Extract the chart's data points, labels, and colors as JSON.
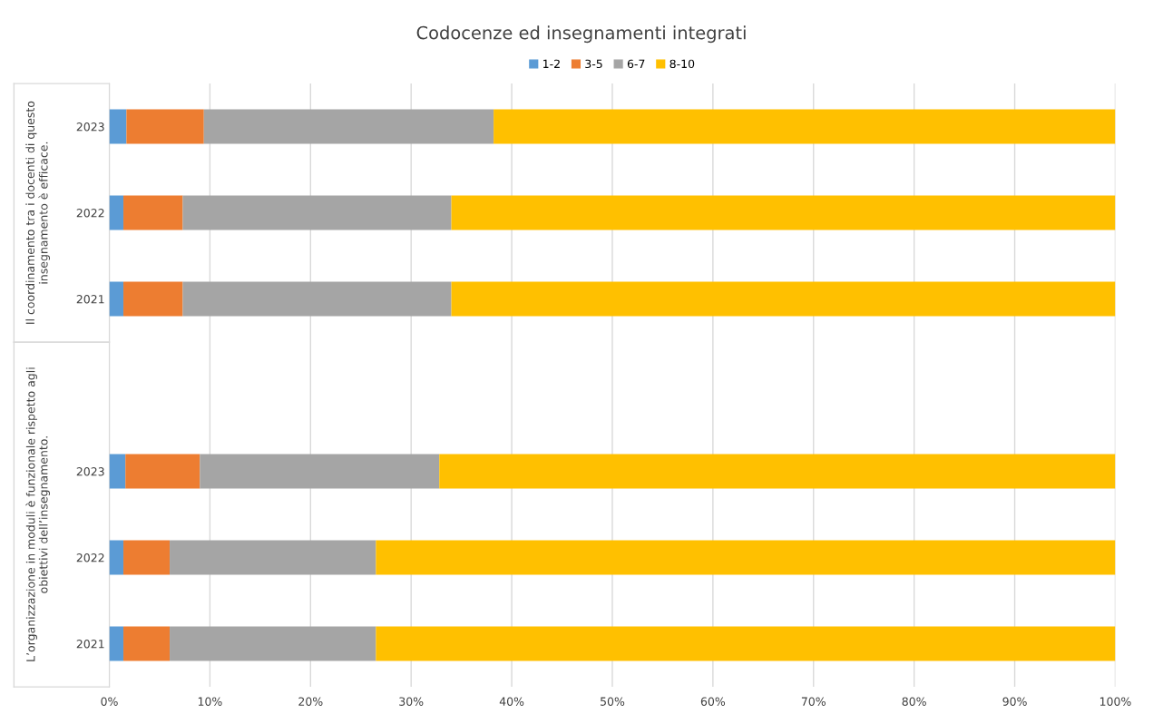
{
  "chart_data": {
    "type": "bar",
    "orientation": "horizontal",
    "stacked": true,
    "title": "Codocenze ed insegnamenti integrati",
    "categories": [
      "2023",
      "2022",
      "2021",
      null,
      "2023",
      "2022",
      "2021"
    ],
    "series": [
      {
        "name": "1-2",
        "color": "#5b9bd5",
        "values": [
          1.7,
          1.4,
          1.4,
          null,
          1.6,
          1.4,
          1.4
        ]
      },
      {
        "name": "3-5",
        "color": "#ed7d31",
        "values": [
          7.7,
          5.9,
          5.9,
          null,
          7.4,
          4.6,
          4.6
        ]
      },
      {
        "name": "6-7",
        "color": "#a5a5a5",
        "values": [
          28.8,
          26.7,
          26.7,
          null,
          23.8,
          20.5,
          20.5
        ]
      },
      {
        "name": "8-10",
        "color": "#ffc000",
        "values": [
          61.8,
          66.0,
          66.0,
          null,
          67.2,
          73.5,
          73.5
        ]
      }
    ],
    "annotations": [
      "Il coordinamento tra i docenti di questo insegnamento è efficace.",
      "L’organizzazione in moduli è funzionale rispetto agli obiettivi dell’insegnamento."
    ],
    "xlim": [
      0,
      100
    ],
    "xticks": [
      {
        "value": 0,
        "label": "0%"
      },
      {
        "value": 10,
        "label": "10%"
      },
      {
        "value": 20,
        "label": "20%"
      },
      {
        "value": 30,
        "label": "30%"
      },
      {
        "value": 40,
        "label": "40%"
      },
      {
        "value": 50,
        "label": "50%"
      },
      {
        "value": 60,
        "label": "60%"
      },
      {
        "value": 70,
        "label": "70%"
      },
      {
        "value": 80,
        "label": "80%"
      },
      {
        "value": 90,
        "label": "90%"
      },
      {
        "value": 100,
        "label": "100%"
      }
    ],
    "grid": "x",
    "legend": "top"
  }
}
